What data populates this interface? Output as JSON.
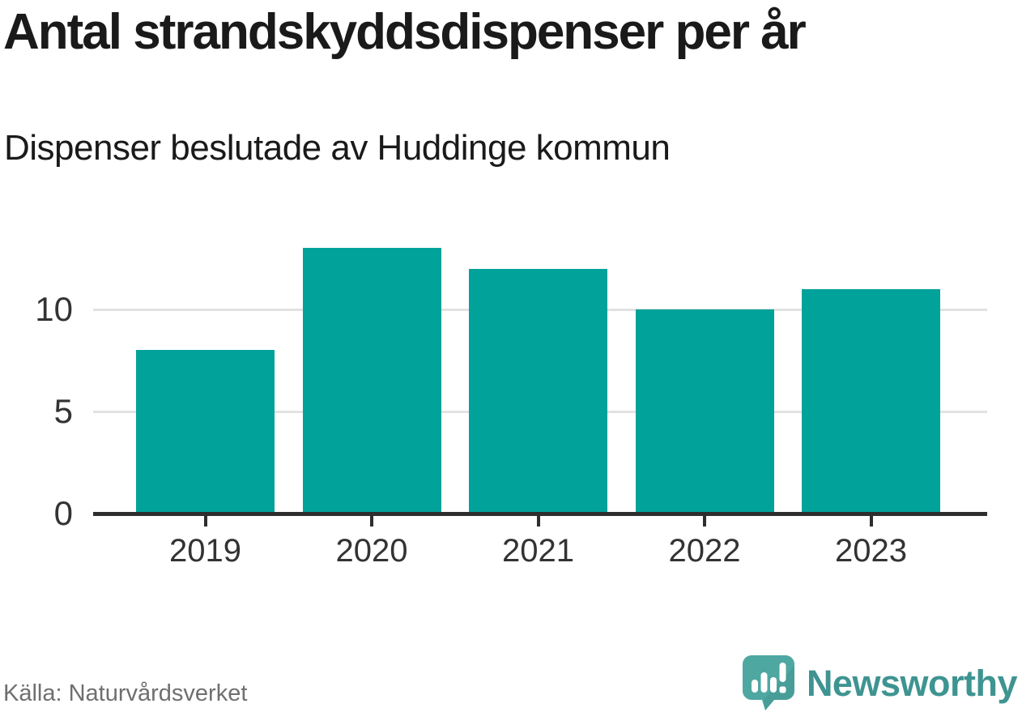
{
  "title": "Antal strandskyddsdispenser per år",
  "subtitle": "Dispenser beslutade av Huddinge kommun",
  "source": "Källa: Naturvårdsverket",
  "logo": {
    "text": "Newsworthy",
    "icon": "newsworthy-speech-bubble-bar-chart-icon"
  },
  "colors": {
    "bar": "#00a29a",
    "axis": "#2e2e2e",
    "grid": "#e2e2e2",
    "tick_label": "#333333",
    "title_text": "#1a1a1a",
    "source_text": "#6f6f6f",
    "logo_teal": "#3e9491",
    "logo_icon_fill": "#4fa7a2",
    "logo_icon_shade": "#43968f"
  },
  "chart_data": {
    "type": "bar",
    "categories": [
      "2019",
      "2020",
      "2021",
      "2022",
      "2023"
    ],
    "values": [
      8,
      13,
      12,
      10,
      11
    ],
    "title": "Antal strandskyddsdispenser per år",
    "subtitle": "Dispenser beslutade av Huddinge kommun",
    "xlabel": "",
    "ylabel": "",
    "yticks": [
      0,
      5,
      10
    ],
    "ylim": [
      0,
      13.5
    ],
    "grid": "horizontal-only",
    "legend": "none",
    "bar_color": "#00a29a",
    "source": "Källa: Naturvårdsverket"
  }
}
